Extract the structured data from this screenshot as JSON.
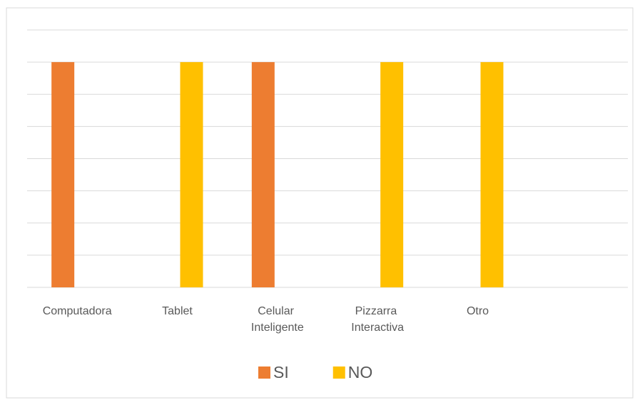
{
  "chart_data": {
    "type": "bar",
    "categories": [
      "Computadora",
      "Tablet",
      "Celular Inteligente",
      "Pizzarra Interactiva",
      "Otro",
      null
    ],
    "series": [
      {
        "name": "SI",
        "color": "#ED7D31",
        "values": [
          7,
          null,
          7,
          null,
          null,
          null
        ]
      },
      {
        "name": "NO",
        "color": "#FFC000",
        "values": [
          null,
          7,
          null,
          7,
          7,
          null
        ]
      }
    ],
    "ylim": [
      0,
      8
    ],
    "yticks": [
      0,
      1,
      2,
      3,
      4,
      5,
      6,
      7,
      8
    ],
    "grid": true,
    "legend": "bottom"
  }
}
